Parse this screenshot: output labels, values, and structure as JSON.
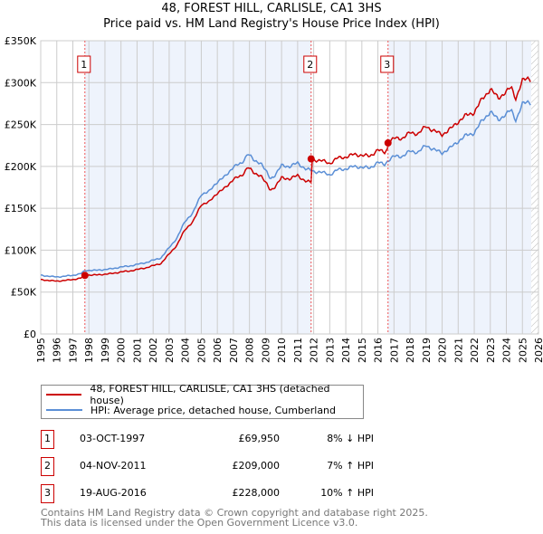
{
  "title": "48, FOREST HILL, CARLISLE, CA1 3HS",
  "subtitle": "Price paid vs. HM Land Registry's House Price Index (HPI)",
  "chart_data": {
    "type": "line",
    "title": "48, FOREST HILL, CARLISLE, CA1 3HS — Price paid vs. HM Land Registry's House Price Index (HPI)",
    "xlim": [
      1995,
      2026
    ],
    "ylim": [
      0,
      350000
    ],
    "y_ticks": [
      "£0",
      "£50K",
      "£100K",
      "£150K",
      "£200K",
      "£250K",
      "£300K",
      "£350K"
    ],
    "x_ticks": [
      "1995",
      "1996",
      "1997",
      "1998",
      "1999",
      "2000",
      "2001",
      "2002",
      "2003",
      "2004",
      "2005",
      "2006",
      "2007",
      "2008",
      "2009",
      "2010",
      "2011",
      "2012",
      "2013",
      "2014",
      "2015",
      "2016",
      "2017",
      "2018",
      "2019",
      "2020",
      "2021",
      "2022",
      "2023",
      "2024",
      "2025",
      "2026"
    ],
    "grid": true,
    "series": [
      {
        "name": "HPI: Average price, detached house, Cumberland",
        "color": "#5b8fd6",
        "x": [
          1995,
          1995.5,
          1996,
          1996.5,
          1997,
          1997.5,
          1997.75,
          1998,
          1998.5,
          1999,
          1999.5,
          2000,
          2000.5,
          2001,
          2001.5,
          2002,
          2002.5,
          2003,
          2003.5,
          2004,
          2004.5,
          2005,
          2005.5,
          2006,
          2006.5,
          2007,
          2007.5,
          2007.9,
          2008.3,
          2008.7,
          2009.3,
          2009.6,
          2010,
          2010.5,
          2011,
          2011.5,
          2011.84,
          2012,
          2012.5,
          2013,
          2013.5,
          2014,
          2014.5,
          2015,
          2015.5,
          2016,
          2016.4,
          2016.63,
          2017,
          2017.5,
          2018,
          2018.5,
          2019,
          2019.5,
          2020,
          2020.5,
          2021,
          2021.5,
          2022,
          2022.5,
          2023,
          2023.5,
          2024,
          2024.3,
          2024.6,
          2025,
          2025.3,
          2025.6
        ],
        "y": [
          70000,
          69000,
          68000,
          69000,
          70000,
          72000,
          75500,
          76000,
          76000,
          77000,
          78000,
          80000,
          81000,
          83000,
          85000,
          88000,
          91000,
          103000,
          115000,
          135000,
          145000,
          167000,
          170000,
          182000,
          188000,
          200000,
          203000,
          216000,
          206000,
          205000,
          185000,
          190000,
          201000,
          200000,
          204000,
          197000,
          195000,
          194000,
          193000,
          190000,
          196000,
          197000,
          200000,
          199000,
          198000,
          205000,
          202000,
          207000,
          212000,
          212000,
          218000,
          217000,
          225000,
          220000,
          216000,
          222000,
          230000,
          237000,
          240000,
          255000,
          265000,
          256000,
          262000,
          268000,
          255000,
          274000,
          278000,
          275000
        ]
      },
      {
        "name": "48, FOREST HILL, CARLISLE, CA1 3HS (detached house)",
        "color": "#cc0000",
        "derived_from": "HPI indexed to each sale"
      }
    ],
    "sales": [
      {
        "n": "1",
        "x": 1997.75,
        "y": 69950
      },
      {
        "n": "2",
        "x": 2011.84,
        "y": 209000
      },
      {
        "n": "3",
        "x": 2016.63,
        "y": 228000
      }
    ],
    "data_end": 2025.55
  },
  "legend": {
    "property": "48, FOREST HILL, CARLISLE, CA1 3HS (detached house)",
    "hpi": "HPI: Average price, detached house, Cumberland",
    "property_color": "#cc0000",
    "hpi_color": "#5b8fd6"
  },
  "sales_table": [
    {
      "n": "1",
      "date": "03-OCT-1997",
      "price": "£69,950",
      "hpi": "8% ↓ HPI"
    },
    {
      "n": "2",
      "date": "04-NOV-2011",
      "price": "£209,000",
      "hpi": "7% ↑ HPI"
    },
    {
      "n": "3",
      "date": "19-AUG-2016",
      "price": "£228,000",
      "hpi": "10% ↑ HPI"
    }
  ],
  "footer": [
    "Contains HM Land Registry data © Crown copyright and database right 2025.",
    "This data is licensed under the Open Government Licence v3.0."
  ]
}
